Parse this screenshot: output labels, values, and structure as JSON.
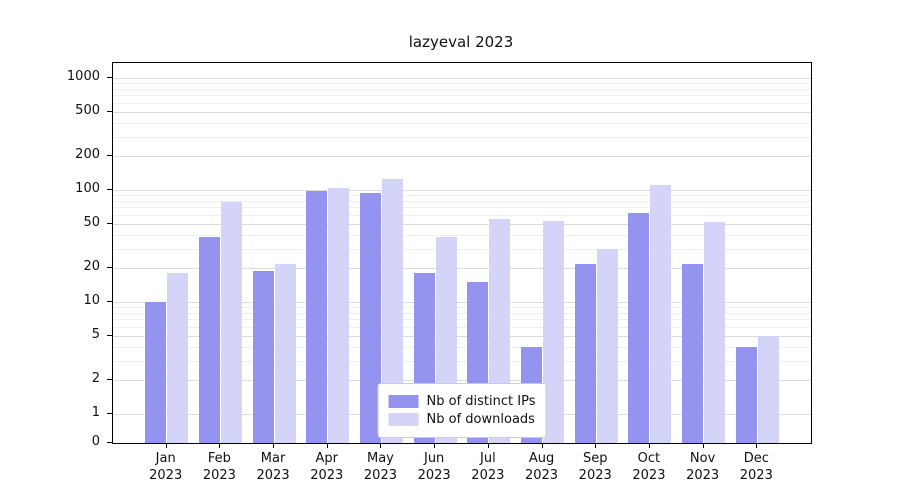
{
  "chart_data": {
    "type": "bar",
    "title": "lazyeval 2023",
    "scale": "symlog",
    "grid": true,
    "legend_position": "lower center",
    "categories": [
      "Jan 2023",
      "Feb 2023",
      "Mar 2023",
      "Apr 2023",
      "May 2023",
      "Jun 2023",
      "Jul 2023",
      "Aug 2023",
      "Sep 2023",
      "Oct 2023",
      "Nov 2023",
      "Dec 2023"
    ],
    "yticks": [
      0,
      1,
      2,
      5,
      10,
      20,
      50,
      100,
      200,
      500,
      1000
    ],
    "ylim": [
      0,
      1350
    ],
    "series": [
      {
        "name": "Nb of distinct IPs",
        "color": "#9494f0",
        "values": [
          10,
          38,
          19,
          97,
          95,
          18,
          15,
          4,
          22,
          62,
          22,
          4
        ]
      },
      {
        "name": "Nb of downloads",
        "color": "#d4d4f9",
        "values": [
          18,
          78,
          22,
          105,
          125,
          38,
          55,
          53,
          30,
          110,
          52,
          5
        ]
      }
    ]
  }
}
